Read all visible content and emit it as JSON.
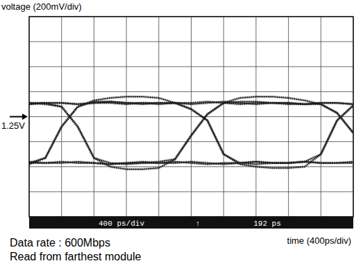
{
  "chart_data": {
    "type": "line",
    "y_label": "voltage (200mV/div)",
    "x_label": "time (400ps/div)",
    "notes": [
      "Data rate : 600Mbps",
      "Read from farthest module"
    ],
    "readout": [
      "400 ps/div",
      "↑",
      "192 ps"
    ],
    "annotations": [
      {
        "text": "1.25V",
        "value": 1.25
      }
    ],
    "x": [
      0,
      200,
      400,
      600,
      800,
      1000,
      1200,
      1400,
      1600,
      1800,
      2000,
      2200,
      2400,
      2600,
      2800,
      3000,
      3200,
      3400,
      3600,
      3800,
      4000
    ],
    "xlim": [
      0,
      4000
    ],
    "ylim": [
      0.45,
      2.05
    ],
    "xticks": [
      0,
      400,
      800,
      1200,
      1600,
      2000,
      2400,
      2800,
      3200,
      3600,
      4000
    ],
    "yticks": [
      0.45,
      0.65,
      0.85,
      1.05,
      1.25,
      1.45,
      1.65,
      1.85,
      2.05
    ],
    "grid": true,
    "tick_labels": false,
    "series": [
      {
        "color": "#1a1a1a",
        "values": [
          0.88,
          0.92,
          1.17,
          1.33,
          1.38,
          1.4,
          1.41,
          1.41,
          1.4,
          1.36,
          1.31,
          1.22,
          0.95,
          0.87,
          0.85,
          0.84,
          0.84,
          0.85,
          0.95,
          1.22,
          1.34
        ]
      },
      {
        "color": "#1a1a1a",
        "values": [
          1.36,
          1.35,
          1.33,
          1.17,
          0.92,
          0.85,
          0.83,
          0.83,
          0.84,
          0.91,
          1.1,
          1.27,
          1.36,
          1.4,
          1.41,
          1.41,
          1.4,
          1.38,
          1.35,
          1.28,
          1.12
        ]
      },
      {
        "color": "#1a1a1a",
        "values": [
          1.35,
          1.36,
          1.36,
          1.35,
          1.36,
          1.37,
          1.36,
          1.35,
          1.36,
          1.36,
          1.35,
          1.36,
          1.37,
          1.36,
          1.35,
          1.36,
          1.36,
          1.35,
          1.36,
          1.36,
          1.35
        ]
      },
      {
        "color": "#1a1a1a",
        "values": [
          0.89,
          0.88,
          0.88,
          0.89,
          0.88,
          0.87,
          0.88,
          0.89,
          0.88,
          0.88,
          0.89,
          0.88,
          0.87,
          0.88,
          0.89,
          0.88,
          0.88,
          0.89,
          0.88,
          0.88,
          0.89
        ]
      },
      {
        "color": "#1a1a1a",
        "values": [
          0.87,
          0.92,
          1.17,
          1.33,
          1.37,
          1.37,
          1.36,
          1.36,
          1.35,
          1.36,
          1.36,
          1.37,
          1.36,
          1.35,
          1.36,
          1.36,
          1.35,
          1.35,
          1.35,
          1.28,
          1.12
        ]
      },
      {
        "color": "#1a1a1a",
        "values": [
          1.36,
          1.36,
          1.33,
          1.17,
          0.92,
          0.88,
          0.87,
          0.88,
          0.88,
          0.89,
          0.88,
          0.87,
          0.88,
          0.88,
          0.89,
          0.88,
          0.88,
          0.89,
          0.95,
          1.22,
          1.34
        ]
      },
      {
        "color": "#1a1a1a",
        "values": [
          0.88,
          0.88,
          0.89,
          0.88,
          0.88,
          0.87,
          0.88,
          0.88,
          0.89,
          0.91,
          1.1,
          1.27,
          1.36,
          1.37,
          1.37,
          1.36,
          1.36,
          1.35,
          1.36,
          1.36,
          1.35
        ]
      },
      {
        "color": "#1a1a1a",
        "values": [
          1.35,
          1.36,
          1.36,
          1.35,
          1.36,
          1.36,
          1.35,
          1.36,
          1.36,
          1.36,
          1.31,
          1.22,
          0.95,
          0.88,
          0.87,
          0.88,
          0.88,
          0.89,
          0.88,
          0.88,
          0.88
        ]
      }
    ]
  }
}
